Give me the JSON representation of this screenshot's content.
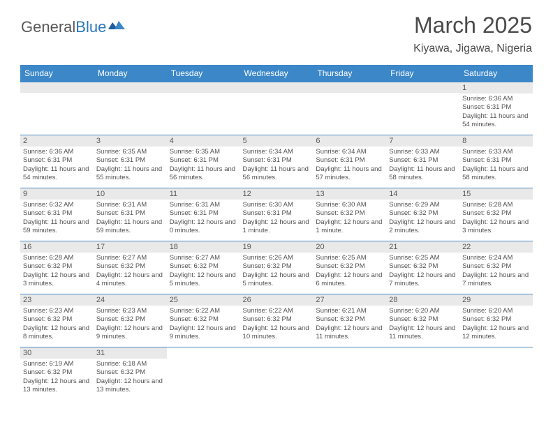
{
  "logo": {
    "general": "General",
    "blue": "Blue"
  },
  "title": "March 2025",
  "location": "Kiyawa, Jigawa, Nigeria",
  "colors": {
    "headerBg": "#3b87c8",
    "headerText": "#ffffff",
    "dayNumBg": "#e9e9e9",
    "cellBorder": "#4a8bc4",
    "logoBlue": "#2b77bd",
    "textGray": "#505050"
  },
  "weekdays": [
    "Sunday",
    "Monday",
    "Tuesday",
    "Wednesday",
    "Thursday",
    "Friday",
    "Saturday"
  ],
  "weeks": [
    [
      {
        "day": "",
        "sunrise": "",
        "sunset": "",
        "daylight": ""
      },
      {
        "day": "",
        "sunrise": "",
        "sunset": "",
        "daylight": ""
      },
      {
        "day": "",
        "sunrise": "",
        "sunset": "",
        "daylight": ""
      },
      {
        "day": "",
        "sunrise": "",
        "sunset": "",
        "daylight": ""
      },
      {
        "day": "",
        "sunrise": "",
        "sunset": "",
        "daylight": ""
      },
      {
        "day": "",
        "sunrise": "",
        "sunset": "",
        "daylight": ""
      },
      {
        "day": "1",
        "sunrise": "Sunrise: 6:36 AM",
        "sunset": "Sunset: 6:31 PM",
        "daylight": "Daylight: 11 hours and 54 minutes."
      }
    ],
    [
      {
        "day": "2",
        "sunrise": "Sunrise: 6:36 AM",
        "sunset": "Sunset: 6:31 PM",
        "daylight": "Daylight: 11 hours and 54 minutes."
      },
      {
        "day": "3",
        "sunrise": "Sunrise: 6:35 AM",
        "sunset": "Sunset: 6:31 PM",
        "daylight": "Daylight: 11 hours and 55 minutes."
      },
      {
        "day": "4",
        "sunrise": "Sunrise: 6:35 AM",
        "sunset": "Sunset: 6:31 PM",
        "daylight": "Daylight: 11 hours and 56 minutes."
      },
      {
        "day": "5",
        "sunrise": "Sunrise: 6:34 AM",
        "sunset": "Sunset: 6:31 PM",
        "daylight": "Daylight: 11 hours and 56 minutes."
      },
      {
        "day": "6",
        "sunrise": "Sunrise: 6:34 AM",
        "sunset": "Sunset: 6:31 PM",
        "daylight": "Daylight: 11 hours and 57 minutes."
      },
      {
        "day": "7",
        "sunrise": "Sunrise: 6:33 AM",
        "sunset": "Sunset: 6:31 PM",
        "daylight": "Daylight: 11 hours and 58 minutes."
      },
      {
        "day": "8",
        "sunrise": "Sunrise: 6:33 AM",
        "sunset": "Sunset: 6:31 PM",
        "daylight": "Daylight: 11 hours and 58 minutes."
      }
    ],
    [
      {
        "day": "9",
        "sunrise": "Sunrise: 6:32 AM",
        "sunset": "Sunset: 6:31 PM",
        "daylight": "Daylight: 11 hours and 59 minutes."
      },
      {
        "day": "10",
        "sunrise": "Sunrise: 6:31 AM",
        "sunset": "Sunset: 6:31 PM",
        "daylight": "Daylight: 11 hours and 59 minutes."
      },
      {
        "day": "11",
        "sunrise": "Sunrise: 6:31 AM",
        "sunset": "Sunset: 6:31 PM",
        "daylight": "Daylight: 12 hours and 0 minutes."
      },
      {
        "day": "12",
        "sunrise": "Sunrise: 6:30 AM",
        "sunset": "Sunset: 6:31 PM",
        "daylight": "Daylight: 12 hours and 1 minute."
      },
      {
        "day": "13",
        "sunrise": "Sunrise: 6:30 AM",
        "sunset": "Sunset: 6:32 PM",
        "daylight": "Daylight: 12 hours and 1 minute."
      },
      {
        "day": "14",
        "sunrise": "Sunrise: 6:29 AM",
        "sunset": "Sunset: 6:32 PM",
        "daylight": "Daylight: 12 hours and 2 minutes."
      },
      {
        "day": "15",
        "sunrise": "Sunrise: 6:28 AM",
        "sunset": "Sunset: 6:32 PM",
        "daylight": "Daylight: 12 hours and 3 minutes."
      }
    ],
    [
      {
        "day": "16",
        "sunrise": "Sunrise: 6:28 AM",
        "sunset": "Sunset: 6:32 PM",
        "daylight": "Daylight: 12 hours and 3 minutes."
      },
      {
        "day": "17",
        "sunrise": "Sunrise: 6:27 AM",
        "sunset": "Sunset: 6:32 PM",
        "daylight": "Daylight: 12 hours and 4 minutes."
      },
      {
        "day": "18",
        "sunrise": "Sunrise: 6:27 AM",
        "sunset": "Sunset: 6:32 PM",
        "daylight": "Daylight: 12 hours and 5 minutes."
      },
      {
        "day": "19",
        "sunrise": "Sunrise: 6:26 AM",
        "sunset": "Sunset: 6:32 PM",
        "daylight": "Daylight: 12 hours and 5 minutes."
      },
      {
        "day": "20",
        "sunrise": "Sunrise: 6:25 AM",
        "sunset": "Sunset: 6:32 PM",
        "daylight": "Daylight: 12 hours and 6 minutes."
      },
      {
        "day": "21",
        "sunrise": "Sunrise: 6:25 AM",
        "sunset": "Sunset: 6:32 PM",
        "daylight": "Daylight: 12 hours and 7 minutes."
      },
      {
        "day": "22",
        "sunrise": "Sunrise: 6:24 AM",
        "sunset": "Sunset: 6:32 PM",
        "daylight": "Daylight: 12 hours and 7 minutes."
      }
    ],
    [
      {
        "day": "23",
        "sunrise": "Sunrise: 6:23 AM",
        "sunset": "Sunset: 6:32 PM",
        "daylight": "Daylight: 12 hours and 8 minutes."
      },
      {
        "day": "24",
        "sunrise": "Sunrise: 6:23 AM",
        "sunset": "Sunset: 6:32 PM",
        "daylight": "Daylight: 12 hours and 9 minutes."
      },
      {
        "day": "25",
        "sunrise": "Sunrise: 6:22 AM",
        "sunset": "Sunset: 6:32 PM",
        "daylight": "Daylight: 12 hours and 9 minutes."
      },
      {
        "day": "26",
        "sunrise": "Sunrise: 6:22 AM",
        "sunset": "Sunset: 6:32 PM",
        "daylight": "Daylight: 12 hours and 10 minutes."
      },
      {
        "day": "27",
        "sunrise": "Sunrise: 6:21 AM",
        "sunset": "Sunset: 6:32 PM",
        "daylight": "Daylight: 12 hours and 11 minutes."
      },
      {
        "day": "28",
        "sunrise": "Sunrise: 6:20 AM",
        "sunset": "Sunset: 6:32 PM",
        "daylight": "Daylight: 12 hours and 11 minutes."
      },
      {
        "day": "29",
        "sunrise": "Sunrise: 6:20 AM",
        "sunset": "Sunset: 6:32 PM",
        "daylight": "Daylight: 12 hours and 12 minutes."
      }
    ],
    [
      {
        "day": "30",
        "sunrise": "Sunrise: 6:19 AM",
        "sunset": "Sunset: 6:32 PM",
        "daylight": "Daylight: 12 hours and 13 minutes."
      },
      {
        "day": "31",
        "sunrise": "Sunrise: 6:18 AM",
        "sunset": "Sunset: 6:32 PM",
        "daylight": "Daylight: 12 hours and 13 minutes."
      },
      {
        "day": "",
        "sunrise": "",
        "sunset": "",
        "daylight": ""
      },
      {
        "day": "",
        "sunrise": "",
        "sunset": "",
        "daylight": ""
      },
      {
        "day": "",
        "sunrise": "",
        "sunset": "",
        "daylight": ""
      },
      {
        "day": "",
        "sunrise": "",
        "sunset": "",
        "daylight": ""
      },
      {
        "day": "",
        "sunrise": "",
        "sunset": "",
        "daylight": ""
      }
    ]
  ]
}
